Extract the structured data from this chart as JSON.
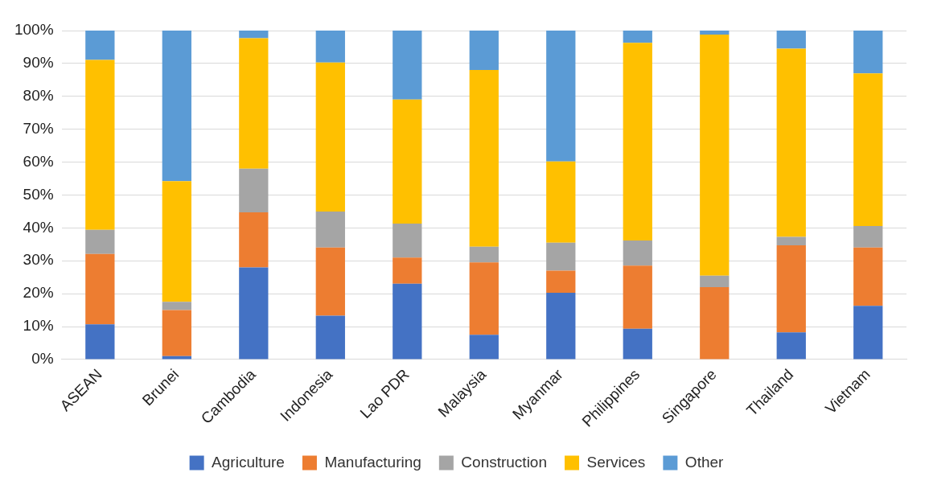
{
  "chart_data": {
    "type": "bar",
    "stacked": true,
    "categories": [
      "ASEAN",
      "Brunei",
      "Cambodia",
      "Indonesia",
      "Lao PDR",
      "Malaysia",
      "Myanmar",
      "Philippines",
      "Singapore",
      "Thailand",
      "Vietnam"
    ],
    "series": [
      {
        "name": "Agriculture",
        "color": "#4472c4",
        "values": [
          10.7,
          1.0,
          28.0,
          13.3,
          23.0,
          7.5,
          20.3,
          9.3,
          0,
          8.2,
          16.3
        ]
      },
      {
        "name": "Manufacturing",
        "color": "#ed7d31",
        "values": [
          21.4,
          14.0,
          16.7,
          20.7,
          8.0,
          22.0,
          6.7,
          19.2,
          22.0,
          26.5,
          17.7
        ]
      },
      {
        "name": "Construction",
        "color": "#a5a5a5",
        "values": [
          7.3,
          2.5,
          13.3,
          11.0,
          10.3,
          4.8,
          8.5,
          7.7,
          3.5,
          2.6,
          6.6
        ]
      },
      {
        "name": "Services",
        "color": "#ffc000",
        "values": [
          51.7,
          36.7,
          39.7,
          45.3,
          37.7,
          53.7,
          24.7,
          60.1,
          73.3,
          57.2,
          46.4
        ]
      },
      {
        "name": "Other",
        "color": "#5b9bd5",
        "values": [
          8.9,
          45.8,
          2.3,
          9.7,
          21.0,
          12.0,
          39.8,
          3.7,
          1.2,
          5.5,
          13.0
        ]
      }
    ],
    "ylim": [
      0,
      100
    ],
    "yticks": [
      {
        "value": 0,
        "label": "0%"
      },
      {
        "value": 10,
        "label": "10%"
      },
      {
        "value": 20,
        "label": "20%"
      },
      {
        "value": 30,
        "label": "30%"
      },
      {
        "value": 40,
        "label": "40%"
      },
      {
        "value": 50,
        "label": "50%"
      },
      {
        "value": 60,
        "label": "60%"
      },
      {
        "value": 70,
        "label": "70%"
      },
      {
        "value": 80,
        "label": "80%"
      },
      {
        "value": 90,
        "label": "90%"
      },
      {
        "value": 100,
        "label": "100%"
      }
    ],
    "grid": "y",
    "legend": "bottom"
  }
}
